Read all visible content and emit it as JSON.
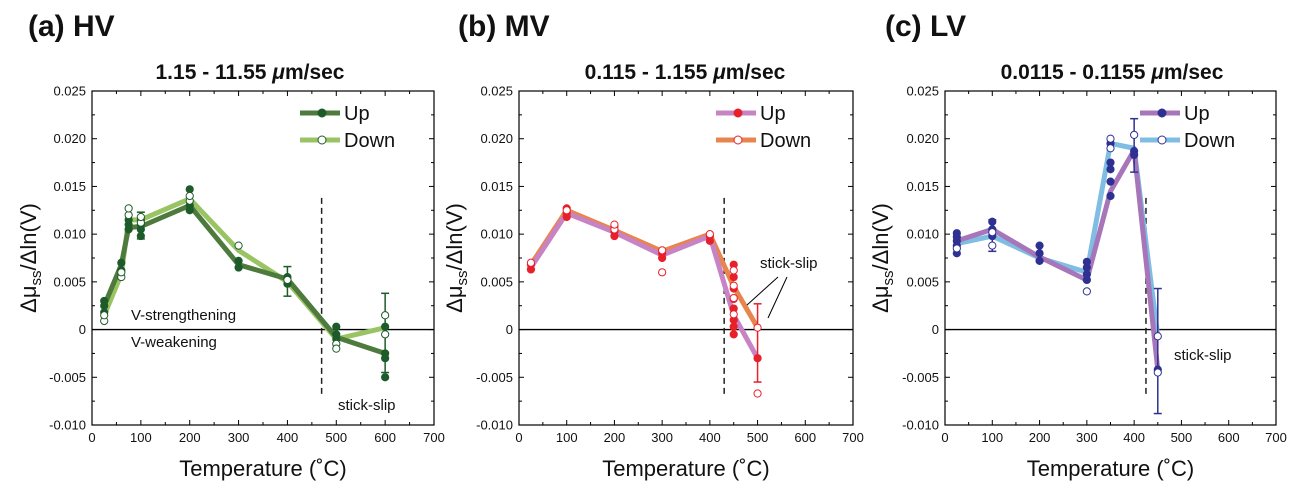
{
  "chart_data": [
    {
      "type": "line",
      "panel_label": "(a) HV",
      "title": "1.15 - 11.55 μm/sec",
      "xlabel": "Temperature (˚C)",
      "ylabel": "Δμss/Δln(V)",
      "xlim": [
        0,
        700
      ],
      "ylim": [
        -0.01,
        0.025
      ],
      "xticks": [
        "0",
        "100",
        "200",
        "300",
        "400",
        "500",
        "600",
        "700"
      ],
      "yticks": [
        "-0.010",
        "-0.005",
        "0",
        "0.005",
        "0.010",
        "0.015",
        "0.020",
        "0.025"
      ],
      "legend_position": "top-right",
      "stick_slip_line_x": 470,
      "annotations": [
        "V-strengthening",
        "V-weakening",
        "stick-slip"
      ],
      "series": [
        {
          "name": "Up",
          "color": "#4e7a3e",
          "marker_color": "#1e5b2a",
          "marker": "filled",
          "x": [
            25,
            60,
            75,
            100,
            200,
            300,
            400,
            500,
            600
          ],
          "y": [
            0.0025,
            0.0068,
            0.0107,
            0.0108,
            0.013,
            0.0068,
            0.0053,
            -0.0008,
            -0.0025
          ],
          "points": [
            [
              25,
              0.0018
            ],
            [
              25,
              0.0025
            ],
            [
              25,
              0.003
            ],
            [
              60,
              0.0062
            ],
            [
              60,
              0.007
            ],
            [
              75,
              0.0105
            ],
            [
              75,
              0.011
            ],
            [
              75,
              0.0115
            ],
            [
              100,
              0.0098
            ],
            [
              100,
              0.0105
            ],
            [
              100,
              0.011
            ],
            [
              100,
              0.0115
            ],
            [
              200,
              0.0125
            ],
            [
              200,
              0.013
            ],
            [
              200,
              0.0147
            ],
            [
              300,
              0.0065
            ],
            [
              300,
              0.0072
            ],
            [
              400,
              0.0048
            ],
            [
              400,
              0.0055
            ],
            [
              500,
              -0.001
            ],
            [
              500,
              -0.0005
            ],
            [
              500,
              0.0003
            ],
            [
              600,
              -0.0025
            ],
            [
              600,
              -0.003
            ],
            [
              600,
              -0.005
            ],
            [
              600,
              0.0003
            ]
          ]
        },
        {
          "name": "Down",
          "color": "#9ac464",
          "marker_color": "#1e5b2a",
          "marker": "open",
          "x": [
            25,
            60,
            75,
            100,
            200,
            300,
            400,
            500,
            600
          ],
          "y": [
            0.0015,
            0.0058,
            0.0115,
            0.0115,
            0.0137,
            0.0083,
            0.005,
            -0.001,
            0.0002
          ],
          "points": [
            [
              25,
              0.0009
            ],
            [
              25,
              0.0015
            ],
            [
              60,
              0.0055
            ],
            [
              60,
              0.006
            ],
            [
              75,
              0.012
            ],
            [
              75,
              0.0127
            ],
            [
              100,
              0.0112
            ],
            [
              100,
              0.0118
            ],
            [
              200,
              0.0135
            ],
            [
              200,
              0.014
            ],
            [
              300,
              0.0088
            ],
            [
              400,
              0.0052
            ],
            [
              500,
              -0.0015
            ],
            [
              500,
              -0.002
            ],
            [
              600,
              0.0015
            ],
            [
              600,
              -0.0005
            ]
          ]
        }
      ],
      "error_bars": [
        {
          "x": 100,
          "y": 0.011,
          "low": 0.0095,
          "high": 0.0123,
          "series": "Up"
        },
        {
          "x": 400,
          "y": 0.0052,
          "low": 0.0035,
          "high": 0.0066,
          "series": "Up"
        },
        {
          "x": 600,
          "y": -0.0015,
          "low": -0.0045,
          "high": 0.0038,
          "series": "Up"
        }
      ]
    },
    {
      "type": "line",
      "panel_label": "(b) MV",
      "title": "0.115 - 1.155 μm/sec",
      "xlabel": "Temperature (˚C)",
      "ylabel": "Δμss/Δln(V)",
      "xlim": [
        0,
        700
      ],
      "ylim": [
        -0.01,
        0.025
      ],
      "xticks": [
        "0",
        "100",
        "200",
        "300",
        "400",
        "500",
        "600",
        "700"
      ],
      "yticks": [
        "-0.010",
        "-0.005",
        "0",
        "0.005",
        "0.010",
        "0.015",
        "0.020",
        "0.025"
      ],
      "legend_position": "top-right",
      "stick_slip_line_x": 430,
      "annotations": [
        "stick-slip"
      ],
      "series": [
        {
          "name": "Up",
          "color": "#c783c4",
          "marker_color": "#e8202a",
          "marker": "filled",
          "x": [
            25,
            100,
            200,
            300,
            400,
            450,
            500
          ],
          "y": [
            0.0065,
            0.0122,
            0.0102,
            0.0078,
            0.0098,
            0.0015,
            -0.003
          ],
          "points": [
            [
              25,
              0.0063
            ],
            [
              25,
              0.0068
            ],
            [
              100,
              0.0118
            ],
            [
              100,
              0.0122
            ],
            [
              100,
              0.0127
            ],
            [
              200,
              0.0098
            ],
            [
              200,
              0.0103
            ],
            [
              200,
              0.0108
            ],
            [
              300,
              0.0075
            ],
            [
              300,
              0.008
            ],
            [
              400,
              0.0093
            ],
            [
              400,
              0.0098
            ],
            [
              450,
              0.0068
            ],
            [
              450,
              0.0055
            ],
            [
              450,
              0.0043
            ],
            [
              450,
              0.0032
            ],
            [
              450,
              0.0022
            ],
            [
              450,
              0.001
            ],
            [
              450,
              0.0003
            ],
            [
              450,
              -0.0005
            ],
            [
              500,
              -0.003
            ]
          ]
        },
        {
          "name": "Down",
          "color": "#e8844d",
          "marker_color": "#e8202a",
          "marker": "open",
          "x": [
            25,
            100,
            200,
            300,
            400,
            450,
            500
          ],
          "y": [
            0.0068,
            0.0125,
            0.0104,
            0.0082,
            0.01,
            0.0045,
            0.0002
          ],
          "points": [
            [
              25,
              0.007
            ],
            [
              100,
              0.0125
            ],
            [
              200,
              0.0105
            ],
            [
              200,
              0.011
            ],
            [
              300,
              0.0083
            ],
            [
              300,
              0.006
            ],
            [
              400,
              0.01
            ],
            [
              450,
              0.0062
            ],
            [
              450,
              0.0046
            ],
            [
              450,
              0.0033
            ],
            [
              450,
              0.0016
            ],
            [
              500,
              0.0002
            ],
            [
              500,
              -0.0067
            ]
          ]
        }
      ],
      "error_bars": [
        {
          "x": 500,
          "y": -0.003,
          "low": -0.0055,
          "high": 0.0027,
          "series": "Up"
        }
      ]
    },
    {
      "type": "line",
      "panel_label": "(c) LV",
      "title": "0.0115 - 0.1155 μm/sec",
      "xlabel": "Temperature (˚C)",
      "ylabel": "Δμss/Δln(V)",
      "xlim": [
        0,
        700
      ],
      "ylim": [
        -0.01,
        0.025
      ],
      "xticks": [
        "0",
        "100",
        "200",
        "300",
        "400",
        "500",
        "600",
        "700"
      ],
      "yticks": [
        "-0.010",
        "-0.005",
        "0",
        "0.005",
        "0.010",
        "0.015",
        "0.020",
        "0.025"
      ],
      "legend_position": "top-right",
      "stick_slip_line_x": 425,
      "annotations": [
        "stick-slip"
      ],
      "series": [
        {
          "name": "Up",
          "color": "#a775b9",
          "marker_color": "#2e3192",
          "marker": "filled",
          "x": [
            25,
            100,
            200,
            300,
            350,
            400,
            450
          ],
          "y": [
            0.0093,
            0.0105,
            0.0076,
            0.0052,
            0.0145,
            0.0188,
            -0.0042
          ],
          "points": [
            [
              25,
              0.008
            ],
            [
              25,
              0.0088
            ],
            [
              25,
              0.0093
            ],
            [
              25,
              0.0097
            ],
            [
              25,
              0.0101
            ],
            [
              100,
              0.0098
            ],
            [
              100,
              0.0105
            ],
            [
              100,
              0.0113
            ],
            [
              200,
              0.0072
            ],
            [
              200,
              0.008
            ],
            [
              200,
              0.0088
            ],
            [
              300,
              0.0052
            ],
            [
              300,
              0.0058
            ],
            [
              300,
              0.0065
            ],
            [
              300,
              0.0071
            ],
            [
              350,
              0.014
            ],
            [
              350,
              0.0155
            ],
            [
              350,
              0.0168
            ],
            [
              350,
              0.0175
            ],
            [
              350,
              0.0195
            ],
            [
              400,
              0.0183
            ],
            [
              400,
              0.0187
            ],
            [
              450,
              -0.0042
            ]
          ]
        },
        {
          "name": "Down",
          "color": "#7fbde2",
          "marker_color": "#2e3192",
          "marker": "open",
          "x": [
            25,
            100,
            200,
            300,
            350,
            400,
            450
          ],
          "y": [
            0.009,
            0.0098,
            0.0075,
            0.006,
            0.0195,
            0.019,
            -0.0007
          ],
          "points": [
            [
              25,
              0.0085
            ],
            [
              100,
              0.0088
            ],
            [
              100,
              0.0102
            ],
            [
              300,
              0.004
            ],
            [
              350,
              0.02
            ],
            [
              350,
              0.019
            ],
            [
              400,
              0.0204
            ],
            [
              450,
              -0.0007
            ],
            [
              450,
              -0.0045
            ]
          ]
        }
      ],
      "error_bars": [
        {
          "x": 100,
          "y": 0.0097,
          "low": 0.0082,
          "high": 0.0115,
          "series": "Up"
        },
        {
          "x": 400,
          "y": 0.0188,
          "low": 0.0165,
          "high": 0.0221,
          "series": "Up"
        },
        {
          "x": 450,
          "y": -0.0042,
          "low": -0.0088,
          "high": 0.0043,
          "series": "Up"
        }
      ]
    }
  ]
}
